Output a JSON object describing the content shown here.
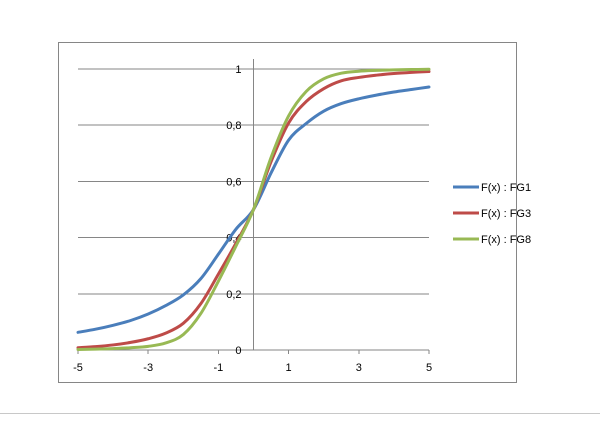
{
  "chart_data": {
    "type": "line",
    "title": "",
    "xlabel": "",
    "ylabel": "",
    "xlim": [
      -5,
      5
    ],
    "ylim": [
      0,
      1
    ],
    "x_ticks": [
      "-5",
      "-3",
      "-1",
      "1",
      "3",
      "5"
    ],
    "x_tick_values": [
      -5,
      -3,
      -1,
      1,
      3,
      5
    ],
    "y_ticks": [
      "0",
      "0,2",
      "0,4",
      "0,6",
      "0,8",
      "1"
    ],
    "y_tick_values": [
      0,
      0.2,
      0.4,
      0.6,
      0.8,
      1
    ],
    "grid": "horizontal",
    "legend_position": "right",
    "x": [
      -5,
      -4.5,
      -4,
      -3.5,
      -3,
      -2.5,
      -2,
      -1.5,
      -1,
      -0.5,
      0,
      0.5,
      1,
      1.5,
      2,
      2.5,
      3,
      3.5,
      4,
      4.5,
      5
    ],
    "series": [
      {
        "name": "F(x) : FG1",
        "color": "#4a7ebb",
        "values": [
          0.063,
          0.074,
          0.088,
          0.105,
          0.128,
          0.158,
          0.196,
          0.254,
          0.341,
          0.43,
          0.5,
          0.63,
          0.747,
          0.806,
          0.85,
          0.877,
          0.894,
          0.907,
          0.918,
          0.927,
          0.936
        ]
      },
      {
        "name": "F(x) : FG3",
        "color": "#be4b48",
        "values": [
          0.008,
          0.012,
          0.018,
          0.027,
          0.04,
          0.06,
          0.095,
          0.165,
          0.27,
          0.38,
          0.5,
          0.67,
          0.808,
          0.884,
          0.93,
          0.958,
          0.97,
          0.978,
          0.984,
          0.988,
          0.991
        ]
      },
      {
        "name": "F(x) : FG8",
        "color": "#98b954",
        "values": [
          0.002,
          0.003,
          0.005,
          0.008,
          0.013,
          0.025,
          0.055,
          0.13,
          0.245,
          0.37,
          0.5,
          0.685,
          0.833,
          0.92,
          0.965,
          0.985,
          0.992,
          0.995,
          0.997,
          0.998,
          0.999
        ]
      }
    ]
  }
}
